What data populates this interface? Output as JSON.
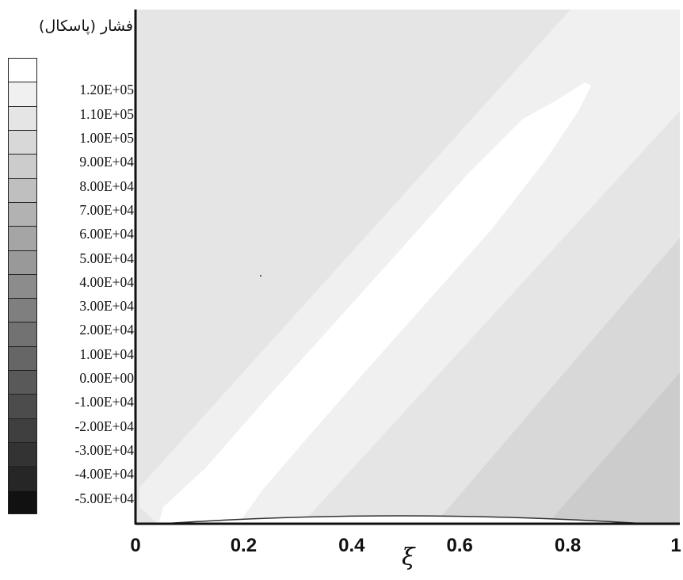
{
  "chart_data": {
    "type": "heatmap",
    "title": "",
    "legend_title": "فشار (پاسکال)",
    "xlabel": "ξ",
    "ylabel": "",
    "xlim": [
      0,
      1
    ],
    "x_ticks": [
      "0",
      "0.2",
      "0.4",
      "0.6",
      "0.8",
      "1"
    ],
    "y_ticks_visible": false,
    "colormap": "grayscale",
    "legend_placement": "left",
    "legend_levels": [
      {
        "value": 120000,
        "label": "1.20E+05",
        "color": "#f0f0f0"
      },
      {
        "value": 110000,
        "label": "1.10E+05",
        "color": "#e5e5e5"
      },
      {
        "value": 100000,
        "label": "1.00E+05",
        "color": "#d8d8d8"
      },
      {
        "value": 90000,
        "label": "9.00E+04",
        "color": "#cccccc"
      },
      {
        "value": 80000,
        "label": "8.00E+04",
        "color": "#bfbfbf"
      },
      {
        "value": 70000,
        "label": "7.00E+04",
        "color": "#b2b2b2"
      },
      {
        "value": 60000,
        "label": "6.00E+04",
        "color": "#a5a5a5"
      },
      {
        "value": 50000,
        "label": "5.00E+04",
        "color": "#999999"
      },
      {
        "value": 40000,
        "label": "4.00E+04",
        "color": "#8c8c8c"
      },
      {
        "value": 30000,
        "label": "3.00E+04",
        "color": "#7f7f7f"
      },
      {
        "value": 20000,
        "label": "2.00E+04",
        "color": "#727272"
      },
      {
        "value": 10000,
        "label": "1.00E+04",
        "color": "#666666"
      },
      {
        "value": 0,
        "label": "0.00E+00",
        "color": "#595959"
      },
      {
        "value": -10000,
        "label": "-1.00E+04",
        "color": "#4c4c4c"
      },
      {
        "value": -20000,
        "label": "-2.00E+04",
        "color": "#3f3f3f"
      },
      {
        "value": -30000,
        "label": "-3.00E+04",
        "color": "#333333"
      },
      {
        "value": -40000,
        "label": "-4.00E+04",
        "color": "#262626"
      },
      {
        "value": -50000,
        "label": "-5.00E+04",
        "color": "#111111"
      }
    ],
    "legend_top_color": "#ffffff",
    "field_bands": [
      {
        "level": "1.20E+05",
        "color": "#ffffff"
      },
      {
        "level": "1.10E+05",
        "color": "#f0f0f0"
      },
      {
        "level": "1.00E+05",
        "color": "#e5e5e5"
      },
      {
        "level": "9.00E+04",
        "color": "#d8d8d8"
      },
      {
        "level": "8.00E+04",
        "color": "#cccccc"
      }
    ]
  }
}
